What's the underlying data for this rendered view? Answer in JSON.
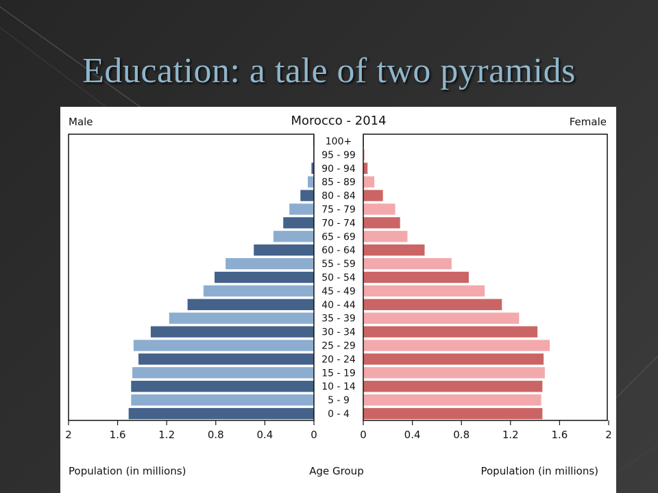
{
  "slide": {
    "title": "Education: a tale of two pyramids"
  },
  "colors": {
    "male_dark": "#44628a",
    "male_light": "#8dadd0",
    "female_dark": "#cb6565",
    "female_light": "#f3a9ab",
    "title": "#8fb6cc"
  },
  "chart_data": {
    "type": "bar",
    "orientation": "horizontal-pyramid",
    "title": "Morocco - 2014",
    "left_label": "Male",
    "right_label": "Female",
    "xlabel_left": "Population (in millions)",
    "xlabel_center": "Age Group",
    "xlabel_right": "Population (in millions)",
    "xlim": [
      0,
      2
    ],
    "ticks": [
      {
        "value": 0,
        "label": "0"
      },
      {
        "value": 0.4,
        "label": "0.4"
      },
      {
        "value": 0.8,
        "label": "0.8"
      },
      {
        "value": 1.2,
        "label": "1.2"
      },
      {
        "value": 1.6,
        "label": "1.6"
      },
      {
        "value": 2,
        "label": "2"
      }
    ],
    "categories": [
      "0 - 4",
      "5 - 9",
      "10 - 14",
      "15 - 19",
      "20 - 24",
      "25 - 29",
      "30 - 34",
      "35 - 39",
      "40 - 44",
      "45 - 49",
      "50 - 54",
      "55 - 59",
      "60 - 64",
      "65 - 69",
      "70 - 74",
      "75 - 79",
      "80 - 84",
      "85 - 89",
      "90 - 94",
      "95 - 99",
      "100+"
    ],
    "series": [
      {
        "name": "Male",
        "values": [
          1.51,
          1.49,
          1.49,
          1.48,
          1.43,
          1.47,
          1.33,
          1.18,
          1.03,
          0.9,
          0.81,
          0.72,
          0.49,
          0.33,
          0.25,
          0.2,
          0.11,
          0.05,
          0.02,
          0.005,
          0.002
        ]
      },
      {
        "name": "Female",
        "values": [
          1.46,
          1.45,
          1.46,
          1.48,
          1.47,
          1.52,
          1.42,
          1.27,
          1.13,
          0.99,
          0.86,
          0.72,
          0.5,
          0.36,
          0.3,
          0.26,
          0.16,
          0.09,
          0.035,
          0.01,
          0.003
        ]
      }
    ]
  }
}
